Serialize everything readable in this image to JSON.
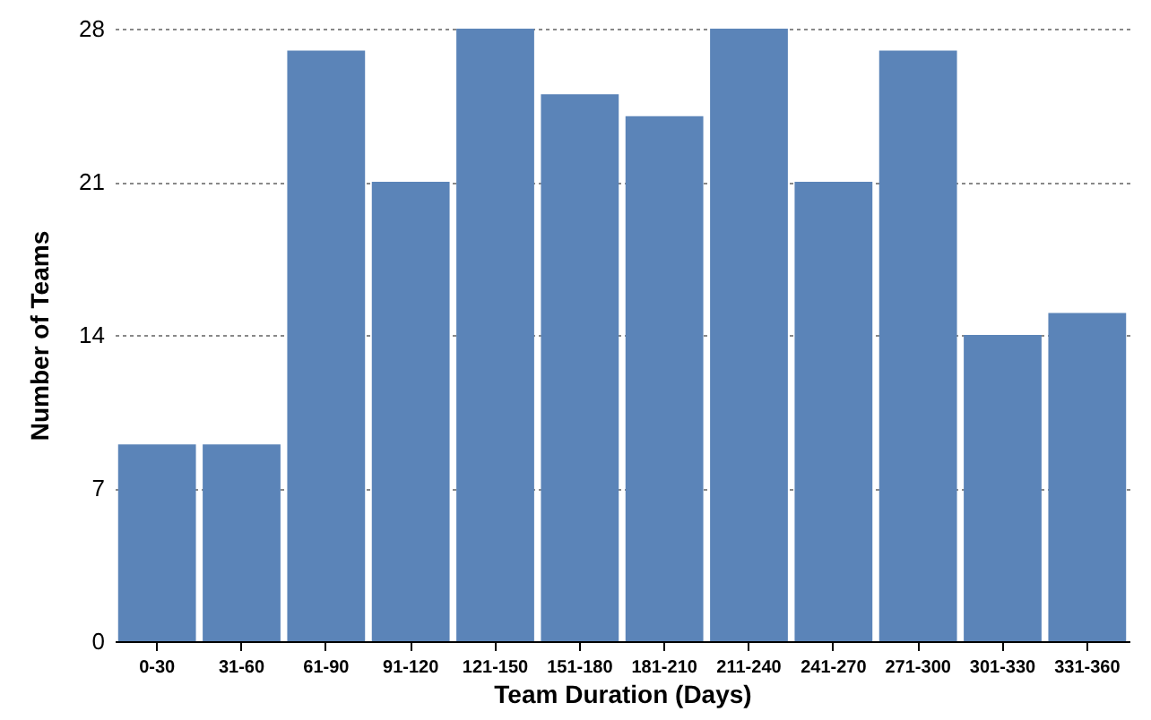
{
  "chart_data": {
    "type": "bar",
    "xlabel": "Team Duration (Days)",
    "ylabel": "Number of Teams",
    "categories": [
      "0-30",
      "31-60",
      "61-90",
      "91-120",
      "121-150",
      "151-180",
      "181-210",
      "211-240",
      "241-270",
      "271-300",
      "301-330",
      "331-360"
    ],
    "values": [
      9,
      9,
      27,
      21,
      28,
      25,
      24,
      28,
      21,
      27,
      14,
      15
    ],
    "color": "#5b84b8",
    "ylim": [
      0,
      28
    ],
    "yticks": [
      0,
      7,
      14,
      21,
      28
    ],
    "grid": "y"
  }
}
